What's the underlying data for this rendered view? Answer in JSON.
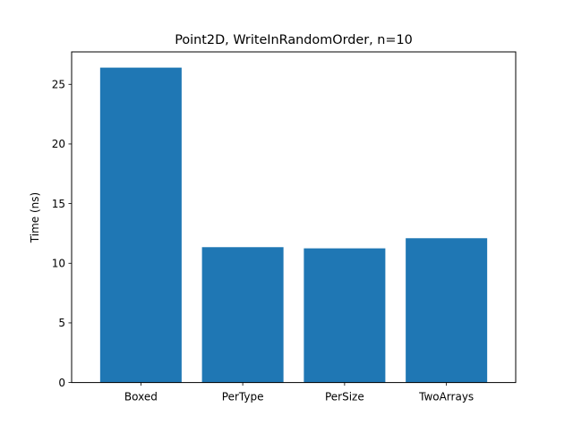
{
  "chart_data": {
    "type": "bar",
    "title": "Point2D, WriteInRandomOrder, n=10",
    "xlabel": "",
    "ylabel": "Time (ns)",
    "categories": [
      "Boxed",
      "PerType",
      "PerSize",
      "TwoArrays"
    ],
    "values": [
      26.4,
      11.35,
      11.25,
      12.1
    ],
    "ylim": [
      0,
      27.72
    ],
    "yticks": [
      0,
      5,
      10,
      15,
      20,
      25
    ],
    "bar_color": "#1f77b4",
    "grid": false,
    "legend": "none"
  }
}
